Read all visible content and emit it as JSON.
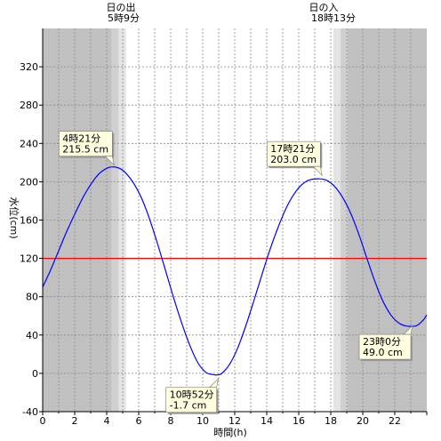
{
  "chart_data": {
    "type": "line",
    "title": "",
    "xlabel": "時間(h)",
    "ylabel": "水位(cm)",
    "xlim": [
      0,
      24
    ],
    "ylim": [
      -40,
      360
    ],
    "x_ticks": [
      0,
      2,
      4,
      6,
      8,
      10,
      12,
      14,
      16,
      18,
      20,
      22
    ],
    "y_ticks": [
      -40,
      0,
      40,
      80,
      120,
      160,
      200,
      240,
      280,
      320
    ],
    "reference_line": {
      "y": 120,
      "color": "#ff0000"
    },
    "series": [
      {
        "color": "#0000ff",
        "points": [
          [
            0.0,
            90
          ],
          [
            0.5,
            108
          ],
          [
            1.0,
            128
          ],
          [
            1.5,
            148
          ],
          [
            2.0,
            166
          ],
          [
            2.5,
            183
          ],
          [
            3.0,
            197
          ],
          [
            3.5,
            208
          ],
          [
            4.0,
            214
          ],
          [
            4.35,
            215.5
          ],
          [
            4.8,
            214
          ],
          [
            5.2,
            209
          ],
          [
            5.7,
            198
          ],
          [
            6.2,
            182
          ],
          [
            6.7,
            160
          ],
          [
            7.2,
            134
          ],
          [
            7.7,
            106
          ],
          [
            8.2,
            78
          ],
          [
            8.7,
            52
          ],
          [
            9.2,
            29
          ],
          [
            9.7,
            11
          ],
          [
            10.2,
            1
          ],
          [
            10.6,
            -1.2
          ],
          [
            10.87,
            -1.7
          ],
          [
            11.2,
            0
          ],
          [
            11.7,
            10
          ],
          [
            12.2,
            27
          ],
          [
            12.7,
            50
          ],
          [
            13.2,
            76
          ],
          [
            13.7,
            103
          ],
          [
            14.2,
            129
          ],
          [
            14.7,
            152
          ],
          [
            15.2,
            172
          ],
          [
            15.7,
            187
          ],
          [
            16.2,
            197
          ],
          [
            16.7,
            202
          ],
          [
            17.35,
            203.0
          ],
          [
            17.8,
            201
          ],
          [
            18.3,
            194
          ],
          [
            18.8,
            182
          ],
          [
            19.3,
            165
          ],
          [
            19.8,
            143
          ],
          [
            20.3,
            118
          ],
          [
            20.8,
            94
          ],
          [
            21.3,
            74
          ],
          [
            21.8,
            60
          ],
          [
            22.3,
            52
          ],
          [
            22.7,
            49.5
          ],
          [
            23.0,
            49.0
          ],
          [
            23.4,
            50
          ],
          [
            23.8,
            56
          ],
          [
            24.0,
            61
          ]
        ]
      }
    ],
    "sunrise": {
      "label": "日の出",
      "time": "5時9分",
      "hour": 5.15
    },
    "sunset": {
      "label": "日の入",
      "time": "18時13分",
      "hour": 18.22
    },
    "annotations": [
      {
        "line1": "4時21分",
        "line2": "215.5 cm",
        "x": 4.35,
        "y": 215.5
      },
      {
        "line1": "10時52分",
        "line2": "-1.7 cm",
        "x": 10.87,
        "y": -1.7
      },
      {
        "line1": "17時21分",
        "line2": "203.0 cm",
        "x": 17.35,
        "y": 203.0
      },
      {
        "line1": "23時0分",
        "line2": "49.0 cm",
        "x": 23.0,
        "y": 49.0
      }
    ]
  }
}
